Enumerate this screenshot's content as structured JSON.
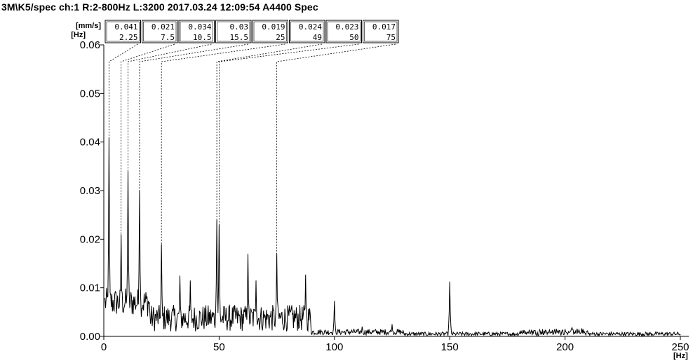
{
  "title": "3M\\K5/spec ch:1 R:2-800Hz L:3200 2017.03.24 12:09:54 A4400 Spec",
  "chart_data": {
    "type": "line",
    "title": "3M\\K5/spec ch:1 R:2-800Hz L:3200 2017.03.24 12:09:54 A4400 Spec",
    "xlabel": "[Hz]",
    "ylabel": "[mm/s]",
    "xlim": [
      0,
      250
    ],
    "ylim": [
      0,
      0.06
    ],
    "x_ticks": [
      {
        "value": 0,
        "label": "0"
      },
      {
        "value": 50,
        "label": "50"
      },
      {
        "value": 100,
        "label": "100"
      },
      {
        "value": 150,
        "label": "150"
      },
      {
        "value": 200,
        "label": "200"
      },
      {
        "value": 250,
        "label": "250"
      }
    ],
    "y_ticks": [
      {
        "value": 0.0,
        "label": "0.00"
      },
      {
        "value": 0.01,
        "label": "0.01"
      },
      {
        "value": 0.02,
        "label": "0.02"
      },
      {
        "value": 0.03,
        "label": "0.03"
      },
      {
        "value": 0.04,
        "label": "0.04"
      },
      {
        "value": 0.05,
        "label": "0.05"
      },
      {
        "value": 0.06,
        "label": "0.06"
      }
    ],
    "peak_table": {
      "amp_unit": "[mm/s]",
      "freq_unit": "[Hz]",
      "peaks": [
        {
          "amp": "0.041",
          "freq": "2.25"
        },
        {
          "amp": "0.021",
          "freq": "7.5"
        },
        {
          "amp": "0.034",
          "freq": "10.5"
        },
        {
          "amp": "0.03",
          "freq": "15.5"
        },
        {
          "amp": "0.019",
          "freq": "25"
        },
        {
          "amp": "0.024",
          "freq": "49"
        },
        {
          "amp": "0.023",
          "freq": "50"
        },
        {
          "amp": "0.017",
          "freq": "75"
        }
      ]
    },
    "series": [
      {
        "values": [
          {
            "x": 2.25,
            "y": 0.041
          },
          {
            "x": 7.5,
            "y": 0.021
          },
          {
            "x": 10.5,
            "y": 0.034
          },
          {
            "x": 15.5,
            "y": 0.03
          },
          {
            "x": 25,
            "y": 0.019
          },
          {
            "x": 49,
            "y": 0.024
          },
          {
            "x": 50,
            "y": 0.023
          },
          {
            "x": 75,
            "y": 0.017
          },
          {
            "x": 33,
            "y": 0.0125
          },
          {
            "x": 37.5,
            "y": 0.0115
          },
          {
            "x": 62.5,
            "y": 0.017
          },
          {
            "x": 66,
            "y": 0.0115
          },
          {
            "x": 87.5,
            "y": 0.0127
          },
          {
            "x": 100,
            "y": 0.0073
          },
          {
            "x": 112,
            "y": 0.002
          },
          {
            "x": 125,
            "y": 0.0025
          },
          {
            "x": 150,
            "y": 0.0113
          },
          {
            "x": 175,
            "y": 0.0008
          },
          {
            "x": 200,
            "y": 0.0015
          },
          {
            "x": 203,
            "y": 0.0018
          },
          {
            "x": 249,
            "y": 0.0005
          }
        ]
      }
    ]
  }
}
